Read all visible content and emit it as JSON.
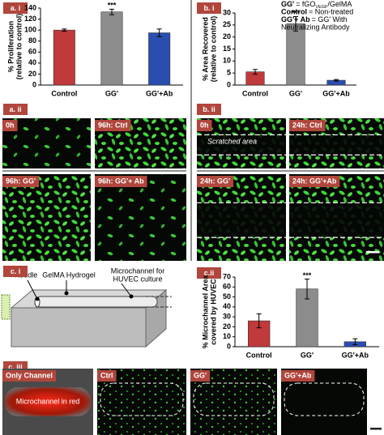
{
  "panel_labels": [
    "a. i",
    "b. i",
    "a. ii",
    "b. ii",
    "c. i",
    "c.ii",
    "c. iii"
  ],
  "chart_data": [
    {
      "type": "bar",
      "ylabel": [
        "% Proliferation",
        "(relative to control)"
      ],
      "categories": [
        "Control",
        "GG'",
        "GG'+Ab"
      ],
      "values": [
        100,
        133,
        95
      ],
      "errors": [
        2,
        5,
        7
      ],
      "colors": [
        "#c0393b",
        "#8c8c8c",
        "#2a4db0"
      ],
      "ylim": [
        0,
        140
      ],
      "yticks": [
        0,
        20,
        40,
        60,
        80,
        100,
        120,
        140
      ],
      "annotation": {
        "text": "***",
        "category": "GG'"
      }
    },
    {
      "type": "bar",
      "ylabel": [
        "% Area Recovered",
        "(relative to control)"
      ],
      "categories": [
        "Control",
        "GG'",
        "GG'+Ab"
      ],
      "values": [
        5.5,
        25.5,
        2
      ],
      "errors": [
        1,
        3,
        0.3
      ],
      "colors": [
        "#c0393b",
        "#8c8c8c",
        "#2a4db0"
      ],
      "ylim": [
        0,
        30
      ],
      "yticks": [
        0,
        5,
        10,
        15,
        20,
        25,
        30
      ],
      "annotation": {
        "text": "***",
        "category": "GG'"
      },
      "notes": [
        [
          "GG'",
          "= fGO",
          "VEGF",
          "/GelMA"
        ],
        [
          "Control",
          "= Non-treated"
        ],
        [
          "GG'+ Ab",
          "= GG' With"
        ],
        [
          "Neutralizing Antibody"
        ]
      ]
    },
    {
      "type": "bar",
      "ylabel": [
        "% Microchannel Area",
        "covered by HUVEC"
      ],
      "categories": [
        "Control",
        "GG'",
        "GG'+Ab"
      ],
      "values": [
        26,
        58,
        5
      ],
      "errors": [
        7,
        10,
        3
      ],
      "colors": [
        "#c0393b",
        "#8c8c8c",
        "#2a4db0"
      ],
      "ylim": [
        0,
        70
      ],
      "yticks": [
        0,
        10,
        20,
        30,
        40,
        50,
        60,
        70
      ],
      "annotation": {
        "text": "***",
        "category": "GG'"
      }
    }
  ],
  "images_a_ii": [
    "0h",
    "96h: Ctrl",
    "96h: GG'",
    "96h: GG'+ Ab"
  ],
  "images_b_ii": [
    "0h",
    "24h: Ctrl",
    "24h: GG'",
    "24h: GG'+Ab"
  ],
  "scratch_label": "Scratched area",
  "diagram_c_i": {
    "needle": "Needle",
    "hydrogel": "GelMA Hydrogel",
    "microchannel": [
      "Microchannel for",
      "HUVEC culture"
    ]
  },
  "images_c_iii": [
    "Only Channel",
    "Ctrl",
    "GG'",
    "GG'+Ab"
  ],
  "channel_label": "Microchannel in red"
}
